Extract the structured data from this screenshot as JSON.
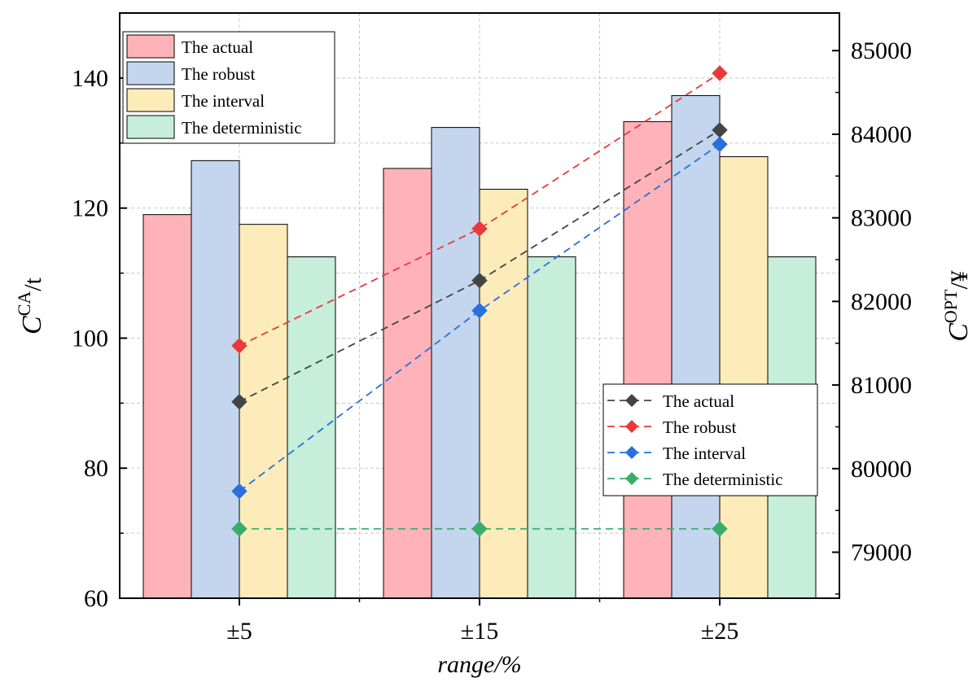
{
  "chart_data": {
    "type": "bar",
    "categories": [
      "±5",
      "±15",
      "±25"
    ],
    "xlabel": "range/%",
    "ylabel_left": {
      "symbol": "C",
      "superscript": "CA",
      "unit": "/t"
    },
    "ylabel_right": {
      "symbol": "C",
      "superscript": "OPT",
      "unit": "/¥"
    },
    "ylim_left": [
      60,
      150
    ],
    "yticks_left": [
      60,
      80,
      100,
      120,
      140
    ],
    "ylim_right": [
      78450,
      85450
    ],
    "yticks_right": [
      79000,
      80000,
      81000,
      82000,
      83000,
      84000,
      85000
    ],
    "grid": true,
    "bar_series": [
      {
        "name": "The actual",
        "color": "#ffb3b8",
        "values": [
          119.0,
          126.1,
          133.3
        ]
      },
      {
        "name": "The robust",
        "color": "#c3d6ee",
        "values": [
          127.3,
          132.4,
          137.3
        ]
      },
      {
        "name": "The interval",
        "color": "#fdecb9",
        "values": [
          117.5,
          122.9,
          127.9
        ]
      },
      {
        "name": "The deterministic",
        "color": "#c6eedb",
        "values": [
          112.5,
          112.5,
          112.5
        ]
      }
    ],
    "line_series": [
      {
        "name": "The actual",
        "color": "#444444",
        "values": [
          80800,
          82250,
          84050
        ]
      },
      {
        "name": "The robust",
        "color": "#e83a3a",
        "values": [
          81470,
          82870,
          84730
        ]
      },
      {
        "name": "The interval",
        "color": "#2a6fdb",
        "values": [
          79730,
          81890,
          83880
        ]
      },
      {
        "name": "The deterministic",
        "color": "#38ad6a",
        "values": [
          79280,
          79280,
          79280
        ]
      }
    ],
    "bar_legend_position": "top-left",
    "line_legend_position": "bottom-right"
  }
}
